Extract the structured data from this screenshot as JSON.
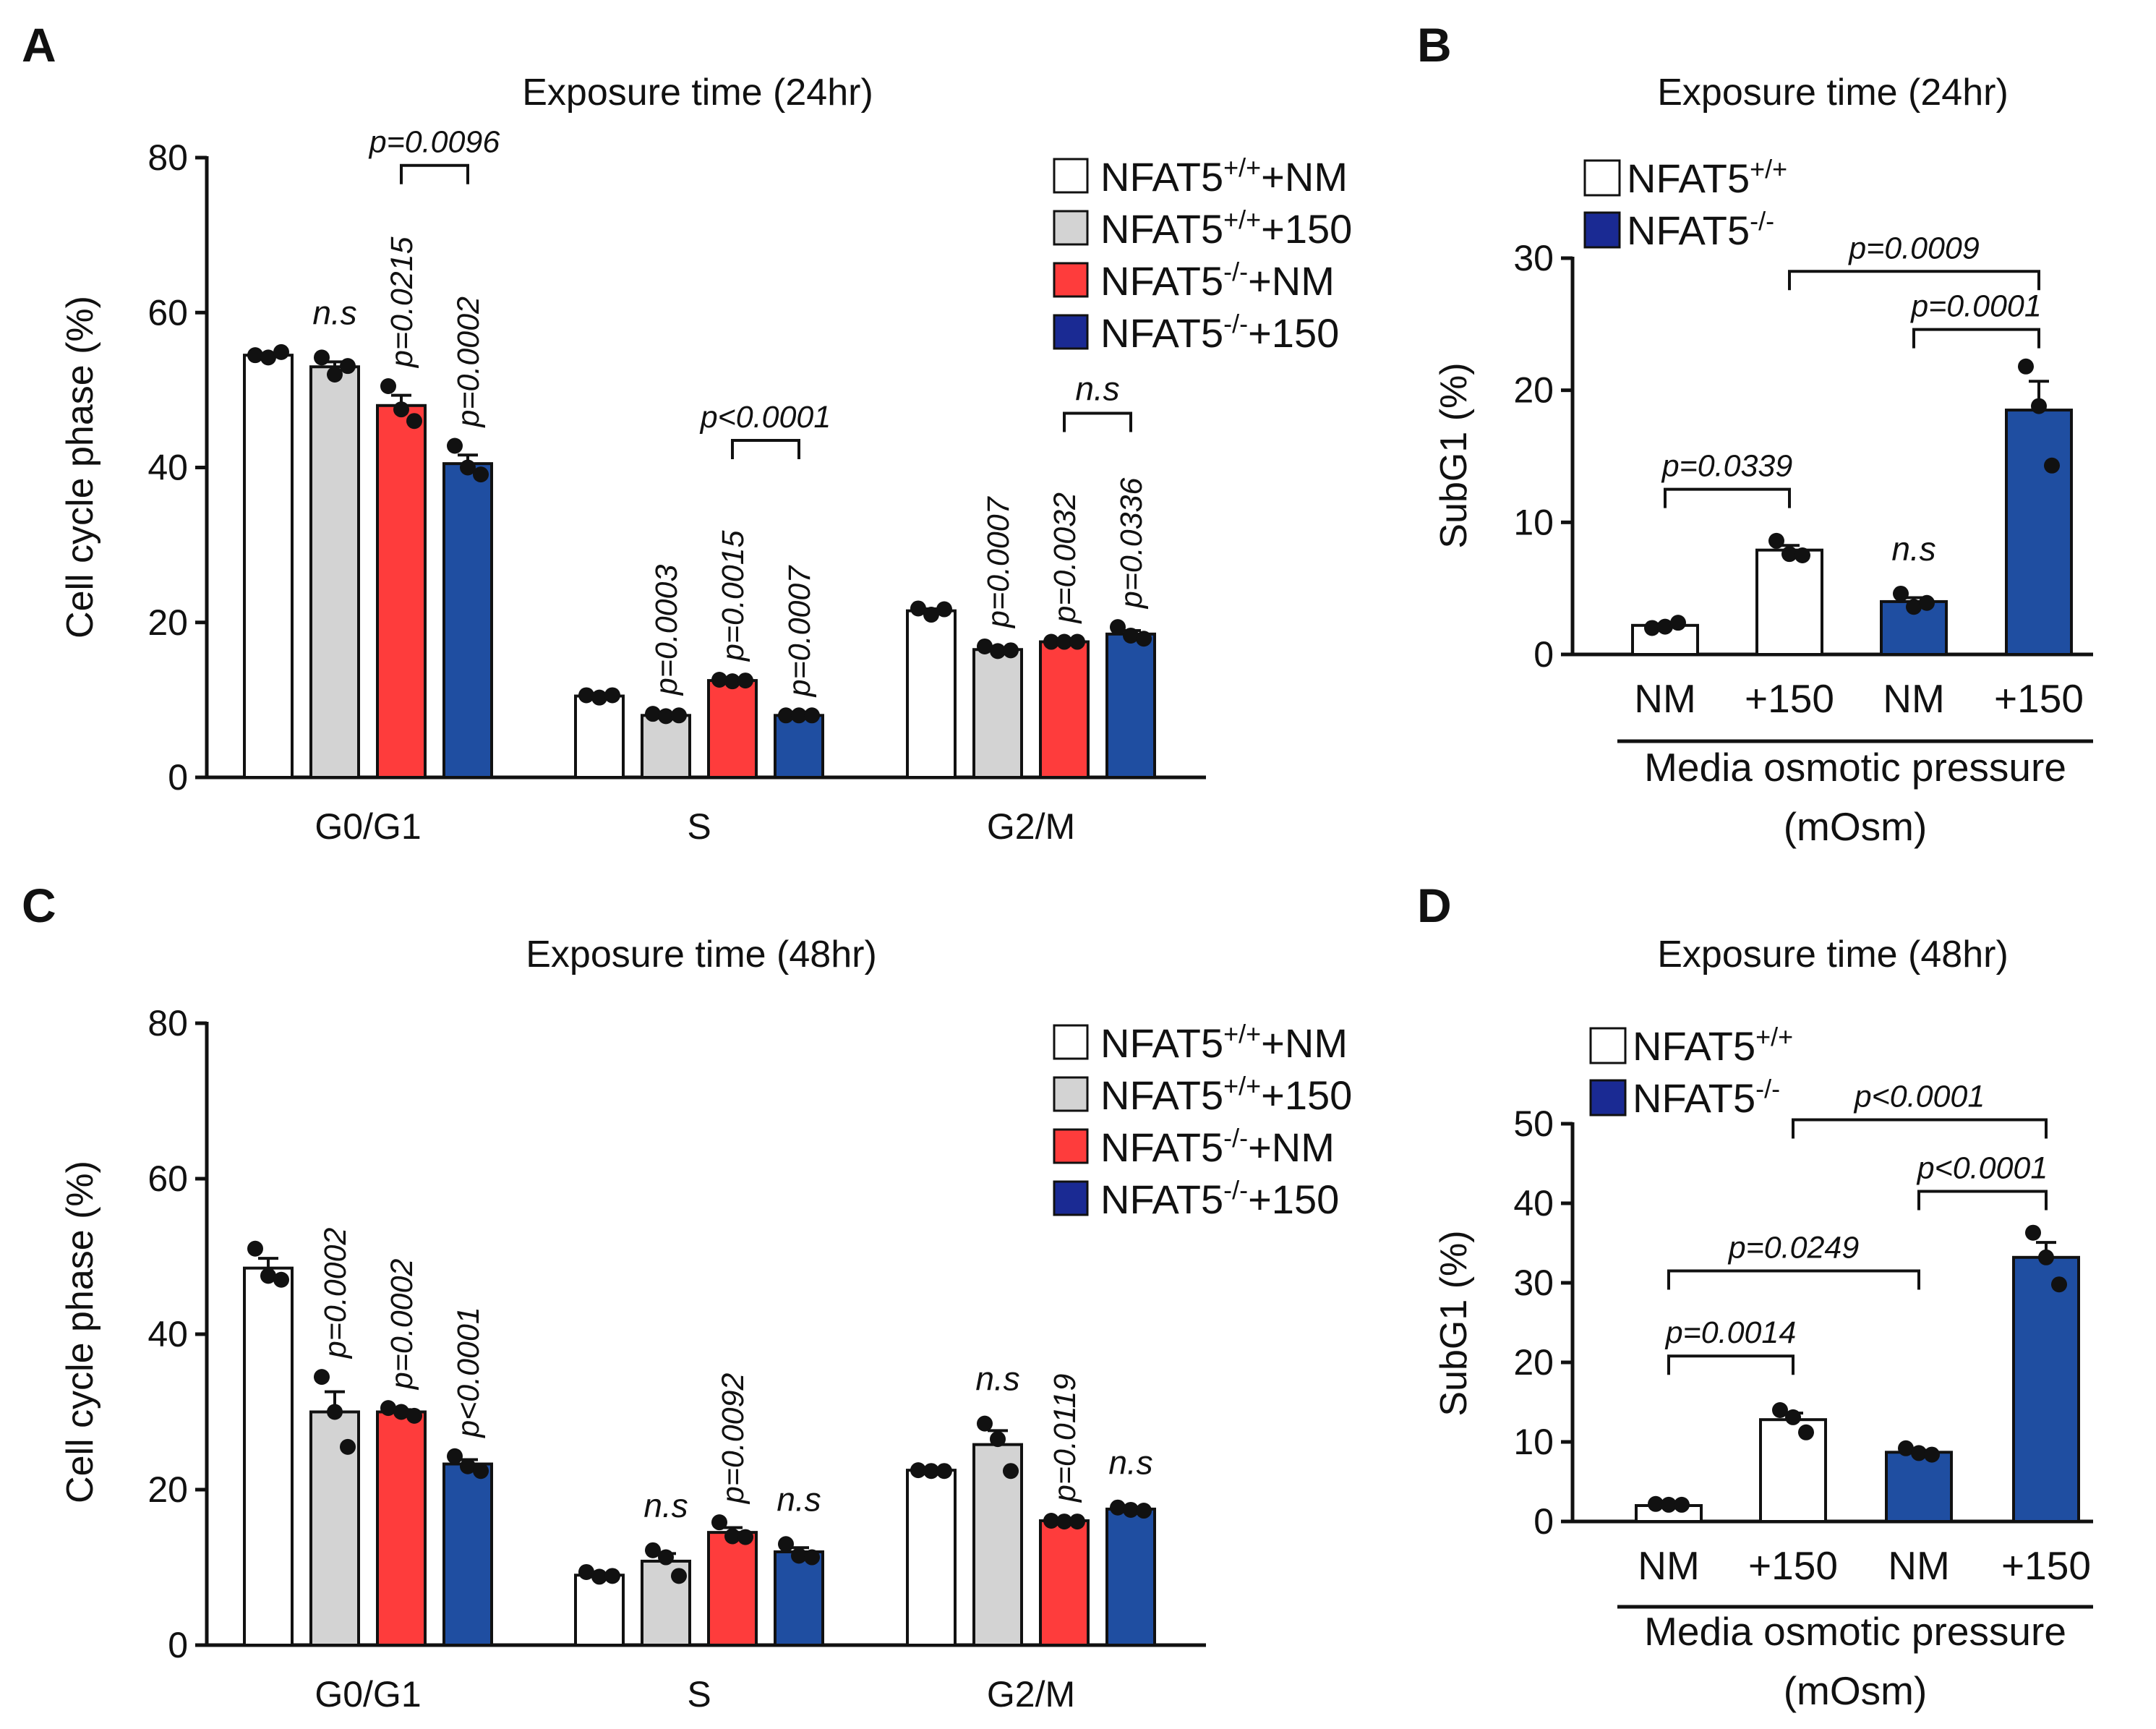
{
  "colors": {
    "wt_nm": "#ffffff",
    "wt_150": "#d3d3d3",
    "ko_nm": "#fe3c3c",
    "ko_150": "#1f4ea1",
    "ko_dark": "#1a2a93",
    "axis": "#111111"
  },
  "chart_data": [
    {
      "panel": "A",
      "type": "bar",
      "title": "Exposure time (24hr)",
      "ylabel": "Cell cycle phase (%)",
      "xlabel": "",
      "ylim": [
        0,
        80
      ],
      "yticks": [
        "0",
        "20",
        "40",
        "60",
        "80"
      ],
      "categories": [
        "G0/G1",
        "S",
        "G2/M"
      ],
      "series": [
        {
          "name": "NFAT5+/+ +NM",
          "values": [
            54.5,
            10.5,
            21.5
          ],
          "points": [
            [
              54.5,
              54.2,
              54.9
            ],
            [
              10.6,
              10.3,
              10.6
            ],
            [
              21.8,
              21.0,
              21.7
            ]
          ]
        },
        {
          "name": "NFAT5+/+ +150",
          "values": [
            53.0,
            8.0,
            16.5
          ],
          "points": [
            [
              54.2,
              52.0,
              53.1
            ],
            [
              8.2,
              7.9,
              8.0
            ],
            [
              16.9,
              16.3,
              16.4
            ]
          ]
        },
        {
          "name": "NFAT5-/- +NM",
          "values": [
            48.0,
            12.5,
            17.5
          ],
          "points": [
            [
              50.5,
              47.5,
              46.0
            ],
            [
              12.6,
              12.4,
              12.5
            ],
            [
              17.5,
              17.5,
              17.5
            ]
          ]
        },
        {
          "name": "NFAT5-/- +150",
          "values": [
            40.5,
            8.0,
            18.5
          ],
          "points": [
            [
              42.8,
              40.0,
              39.1
            ],
            [
              8.0,
              8.0,
              8.0
            ],
            [
              19.4,
              18.3,
              17.9
            ]
          ]
        }
      ],
      "legend": [
        {
          "name": "NFAT5",
          "sup": "+/+",
          "suffix": "+NM"
        },
        {
          "name": "NFAT5",
          "sup": "+/+",
          "suffix": "+150"
        },
        {
          "name": "NFAT5",
          "sup": "-/-",
          "suffix": "+NM"
        },
        {
          "name": "NFAT5",
          "sup": "-/-",
          "suffix": "+150"
        }
      ],
      "annotations": [
        {
          "text": "n.s",
          "cat": 0,
          "series": 1,
          "rotated": false
        },
        {
          "text": "p=0.0215",
          "cat": 0,
          "series": 2,
          "rotated": true
        },
        {
          "text": "p=0.0002",
          "cat": 0,
          "series": 3,
          "rotated": true
        },
        {
          "text": "p=0.0003",
          "cat": 1,
          "series": 1,
          "rotated": true
        },
        {
          "text": "p=0.0015",
          "cat": 1,
          "series": 2,
          "rotated": true
        },
        {
          "text": "p=0.0007",
          "cat": 1,
          "series": 3,
          "rotated": true
        },
        {
          "text": "p=0.0007",
          "cat": 2,
          "series": 1,
          "rotated": true
        },
        {
          "text": "p=0.0032",
          "cat": 2,
          "series": 2,
          "rotated": true
        },
        {
          "text": "p=0.0336",
          "cat": 2,
          "series": 3,
          "rotated": true
        }
      ],
      "brackets": [
        {
          "text": "p=0.0096",
          "cat": 0,
          "from": 2,
          "to": 3,
          "y": 79.0
        },
        {
          "text": "p<0.0001",
          "cat": 1,
          "from": 2,
          "to": 3,
          "y": 43.5
        },
        {
          "text": "n.s",
          "cat": 2,
          "from": 2,
          "to": 3,
          "y": 47.0
        }
      ]
    },
    {
      "panel": "B",
      "type": "bar",
      "title": "Exposure time (24hr)",
      "ylabel": "SubG1 (%)",
      "xlabel": "Media osmotic pressure",
      "xlabel2": "(mOsm)",
      "ylim": [
        0,
        30
      ],
      "yticks": [
        "0",
        "10",
        "20",
        "30"
      ],
      "categories": [
        "NM",
        "+150",
        "NM",
        "+150"
      ],
      "values": [
        2.2,
        7.9,
        4.0,
        18.5
      ],
      "points": [
        [
          2.0,
          2.1,
          2.4
        ],
        [
          8.6,
          7.6,
          7.5
        ],
        [
          4.6,
          3.6,
          3.9
        ],
        [
          21.8,
          18.8,
          14.3
        ]
      ],
      "legend": [
        {
          "name": "NFAT5",
          "sup": "+/+"
        },
        {
          "name": "NFAT5",
          "sup": "-/-"
        }
      ],
      "annotations": [
        {
          "text": "n.s",
          "index": 2,
          "rotated": false
        }
      ],
      "brackets": [
        {
          "text": "p=0.0339",
          "from": 0,
          "to": 1,
          "y": 12.5
        },
        {
          "text": "p=0.0001",
          "from": 2,
          "to": 3,
          "y": 24.6
        },
        {
          "text": "p=0.0009",
          "from": 1,
          "to": 3,
          "y": 29.0
        }
      ]
    },
    {
      "panel": "C",
      "type": "bar",
      "title": "Exposure time (48hr)",
      "ylabel": "Cell cycle phase (%)",
      "xlabel": "",
      "ylim": [
        0,
        80
      ],
      "yticks": [
        "0",
        "20",
        "40",
        "60",
        "80"
      ],
      "categories": [
        "G0/G1",
        "S",
        "G2/M"
      ],
      "series": [
        {
          "name": "NFAT5+/+ +NM",
          "values": [
            48.5,
            9.0,
            22.5
          ],
          "points": [
            [
              51.0,
              47.5,
              47.0
            ],
            [
              9.4,
              8.8,
              8.9
            ],
            [
              22.5,
              22.4,
              22.4
            ]
          ]
        },
        {
          "name": "NFAT5+/+ +150",
          "values": [
            30.0,
            10.8,
            25.8
          ],
          "points": [
            [
              34.5,
              30.0,
              25.5
            ],
            [
              12.2,
              11.3,
              8.9
            ],
            [
              28.5,
              26.5,
              22.4
            ]
          ]
        },
        {
          "name": "NFAT5-/- +NM",
          "values": [
            30.0,
            14.5,
            16.0
          ],
          "points": [
            [
              30.5,
              30.0,
              29.5
            ],
            [
              15.8,
              14.0,
              13.9
            ],
            [
              16.0,
              15.9,
              15.9
            ]
          ]
        },
        {
          "name": "NFAT5-/- +150",
          "values": [
            23.3,
            12.0,
            17.5
          ],
          "points": [
            [
              24.3,
              23.0,
              22.4
            ],
            [
              13.0,
              11.5,
              11.3
            ],
            [
              17.7,
              17.4,
              17.3
            ]
          ]
        }
      ],
      "legend": [
        {
          "name": "NFAT5",
          "sup": "+/+",
          "suffix": "+NM"
        },
        {
          "name": "NFAT5",
          "sup": "+/+",
          "suffix": "+150"
        },
        {
          "name": "NFAT5",
          "sup": "-/-",
          "suffix": "+NM"
        },
        {
          "name": "NFAT5",
          "sup": "-/-",
          "suffix": "+150"
        }
      ],
      "annotations": [
        {
          "text": "p=0.0002",
          "cat": 0,
          "series": 1,
          "rotated": true
        },
        {
          "text": "p=0.0002",
          "cat": 0,
          "series": 2,
          "rotated": true
        },
        {
          "text": "p<0.0001",
          "cat": 0,
          "series": 3,
          "rotated": true
        },
        {
          "text": "n.s",
          "cat": 1,
          "series": 1,
          "rotated": false
        },
        {
          "text": "p=0.0092",
          "cat": 1,
          "series": 2,
          "rotated": true
        },
        {
          "text": "n.s",
          "cat": 1,
          "series": 3,
          "rotated": false
        },
        {
          "text": "n.s",
          "cat": 2,
          "series": 1,
          "rotated": false
        },
        {
          "text": "p=0.0119",
          "cat": 2,
          "series": 2,
          "rotated": true
        },
        {
          "text": "n.s",
          "cat": 2,
          "series": 3,
          "rotated": false
        }
      ],
      "brackets": []
    },
    {
      "panel": "D",
      "type": "bar",
      "title": "Exposure time (48hr)",
      "ylabel": "SubG1 (%)",
      "xlabel": "Media osmotic pressure",
      "xlabel2": "(mOsm)",
      "ylim": [
        0,
        50
      ],
      "yticks": [
        "0",
        "10",
        "20",
        "30",
        "40",
        "50"
      ],
      "categories": [
        "NM",
        "+150",
        "NM",
        "+150"
      ],
      "values": [
        2.0,
        12.8,
        8.7,
        33.2
      ],
      "points": [
        [
          2.2,
          2.1,
          2.1
        ],
        [
          14.0,
          13.1,
          11.2
        ],
        [
          9.2,
          8.6,
          8.4
        ],
        [
          36.3,
          33.2,
          29.8
        ]
      ],
      "legend": [
        {
          "name": "NFAT5",
          "sup": "+/+"
        },
        {
          "name": "NFAT5",
          "sup": "-/-"
        }
      ],
      "annotations": [],
      "brackets": [
        {
          "text": "p=0.0014",
          "from": 0,
          "to": 1,
          "y": 20.8
        },
        {
          "text": "p=0.0249",
          "from": 0,
          "to": 2,
          "y": 31.5
        },
        {
          "text": "p<0.0001",
          "from": 2,
          "to": 3,
          "y": 41.5
        },
        {
          "text": "p<0.0001",
          "from": 1,
          "to": 3,
          "y": 50.5
        }
      ]
    }
  ]
}
